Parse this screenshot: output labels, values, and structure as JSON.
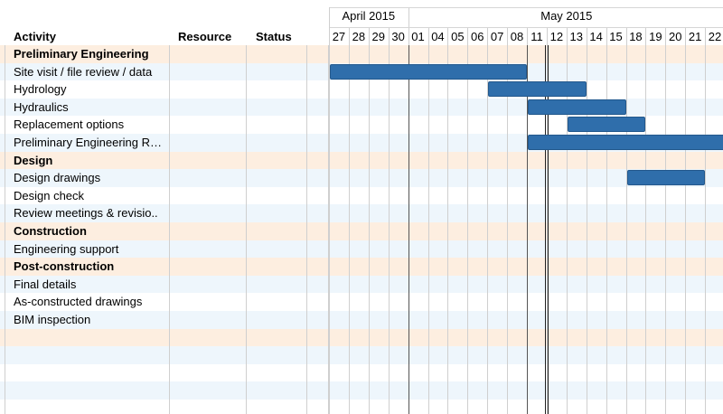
{
  "columns": {
    "activity": "Activity",
    "resource": "Resource",
    "status": "Status"
  },
  "timeline": {
    "months": [
      "April 2015",
      "May 2015"
    ],
    "days": [
      "27",
      "28",
      "29",
      "30",
      "01",
      "04",
      "05",
      "06",
      "07",
      "08",
      "11",
      "12",
      "13",
      "14",
      "15",
      "18",
      "19",
      "20",
      "21",
      "22"
    ]
  },
  "rows": [
    {
      "label": "Preliminary Engineering",
      "group": true
    },
    {
      "label": "Site visit / file review / data",
      "group": false
    },
    {
      "label": "Hydrology",
      "group": false
    },
    {
      "label": "Hydraulics",
      "group": false
    },
    {
      "label": "Replacement options",
      "group": false
    },
    {
      "label": "Preliminary Engineering R…",
      "group": false
    },
    {
      "label": "Design",
      "group": true
    },
    {
      "label": "Design drawings",
      "group": false
    },
    {
      "label": "Design check",
      "group": false
    },
    {
      "label": "Review meetings & revisio..",
      "group": false
    },
    {
      "label": "Construction",
      "group": true
    },
    {
      "label": "Engineering support",
      "group": false
    },
    {
      "label": "Post-construction",
      "group": true
    },
    {
      "label": "Final details",
      "group": false
    },
    {
      "label": "As-constructed drawings",
      "group": false
    },
    {
      "label": "BIM inspection",
      "group": false
    },
    {
      "label": "",
      "group": true
    },
    {
      "label": "",
      "group": false
    },
    {
      "label": "",
      "group": false
    },
    {
      "label": "",
      "group": false
    },
    {
      "label": "",
      "group": false
    }
  ],
  "tasks": [
    {
      "row": 1,
      "start": "27",
      "end": "08"
    },
    {
      "row": 2,
      "start": "07",
      "end": "13"
    },
    {
      "row": 3,
      "start": "11",
      "end": "15"
    },
    {
      "row": 4,
      "start": "13",
      "end": "18"
    },
    {
      "row": 5,
      "start": "11",
      "end": "22"
    },
    {
      "row": 7,
      "start": "18",
      "end": "21"
    }
  ],
  "colors": {
    "group_row": "#fdeee0",
    "task_row": "#eef6fc",
    "bar": "#2f6eab"
  }
}
